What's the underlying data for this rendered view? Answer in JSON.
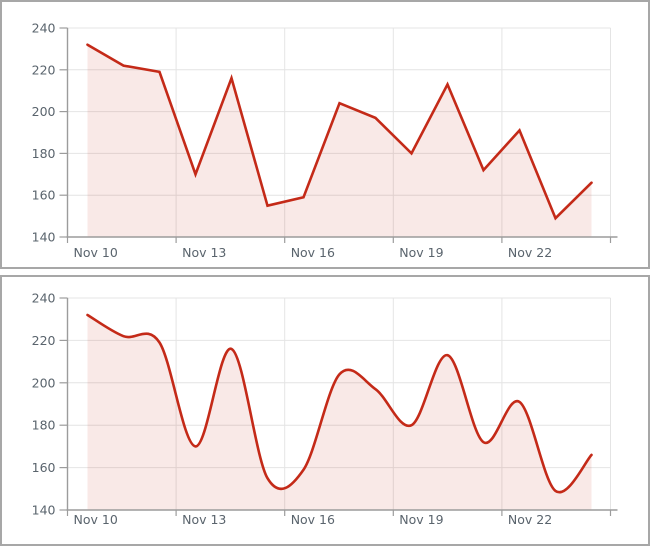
{
  "window": {
    "background": "#ffffff",
    "panel_border_color": "#a7a7a7"
  },
  "style": {
    "line_color": "#c42a18",
    "fill_color": "rgba(196,42,24,0.10)",
    "grid_color": "#e4e4e4",
    "axis_color": "#9c9c9c",
    "label_color": "#5a646d"
  },
  "chart_data": [
    {
      "type": "area",
      "curve": "linear",
      "title": "",
      "subtitle": "",
      "xlabel": "",
      "ylabel": "",
      "legend": "none",
      "grid": true,
      "categories": [
        "Nov 10",
        "Nov 11",
        "Nov 12",
        "Nov 13",
        "Nov 14",
        "Nov 15",
        "Nov 16",
        "Nov 17",
        "Nov 18",
        "Nov 19",
        "Nov 20",
        "Nov 21",
        "Nov 22",
        "Nov 23",
        "Nov 24"
      ],
      "values": [
        232,
        222,
        219,
        170,
        216,
        155,
        159,
        204,
        197,
        180,
        213,
        172,
        191,
        149,
        166
      ],
      "ylim": [
        140,
        240
      ],
      "y_ticks": [
        140,
        160,
        180,
        200,
        220,
        240
      ],
      "x_axis_labels": [
        "Nov 10",
        "Nov 13",
        "Nov 16",
        "Nov 19",
        "Nov 22"
      ]
    },
    {
      "type": "area",
      "curve": "spline",
      "title": "",
      "subtitle": "",
      "xlabel": "",
      "ylabel": "",
      "legend": "none",
      "grid": true,
      "categories": [
        "Nov 10",
        "Nov 11",
        "Nov 12",
        "Nov 13",
        "Nov 14",
        "Nov 15",
        "Nov 16",
        "Nov 17",
        "Nov 18",
        "Nov 19",
        "Nov 20",
        "Nov 21",
        "Nov 22",
        "Nov 23",
        "Nov 24"
      ],
      "values": [
        232,
        222,
        219,
        170,
        216,
        155,
        159,
        204,
        197,
        180,
        213,
        172,
        191,
        149,
        166
      ],
      "ylim": [
        140,
        240
      ],
      "y_ticks": [
        140,
        160,
        180,
        200,
        220,
        240
      ],
      "x_axis_labels": [
        "Nov 10",
        "Nov 13",
        "Nov 16",
        "Nov 19",
        "Nov 22"
      ]
    }
  ]
}
